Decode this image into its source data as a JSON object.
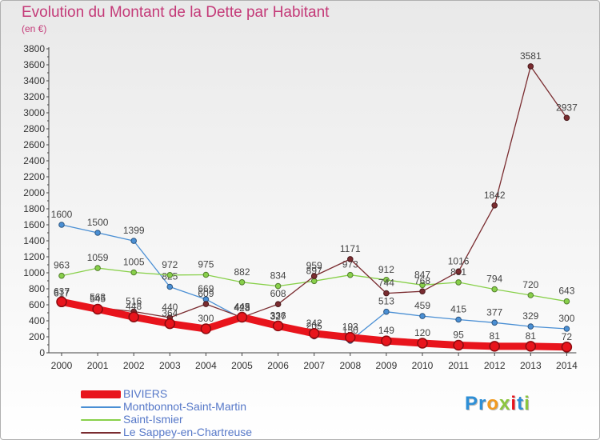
{
  "page": {
    "title": "Evolution du Montant de la Dette par Habitant",
    "subtitle": "(en €)"
  },
  "chart_data": {
    "type": "line",
    "title": "Evolution du Montant de la Dette par Habitant",
    "subtitle": "(en €)",
    "ylim": [
      0,
      3800
    ],
    "y_ticks": [
      0,
      200,
      400,
      600,
      800,
      1000,
      1200,
      1400,
      1600,
      1800,
      2000,
      2200,
      2400,
      2600,
      2800,
      3000,
      3200,
      3400,
      3600,
      3800
    ],
    "x": [
      "2000",
      "2001",
      "2002",
      "2003",
      "2004",
      "2005",
      "2006",
      "2007",
      "2008",
      "2009",
      "2010",
      "2011",
      "2012",
      "2013",
      "2014"
    ],
    "grid": false,
    "legend_position": "bottom-left",
    "series": [
      {
        "name": "BIVIERS",
        "color": "#e8141c",
        "values": [
          637,
          545,
          448,
          364,
          300,
          445,
          336,
          242,
          193,
          149,
          120,
          95,
          81,
          81,
          72
        ],
        "labels": [
          "637",
          "545",
          "448",
          "364",
          "300",
          "445",
          "336",
          "242",
          "193",
          "149",
          "120",
          "95",
          "81",
          "81",
          "72"
        ]
      },
      {
        "name": "Montbonnot-Saint-Martin",
        "color": "#4a8fd4",
        "values": [
          1600,
          1500,
          1399,
          825,
          669,
          428,
          327,
          205,
          150,
          513,
          459,
          415,
          377,
          329,
          300
        ],
        "labels": [
          "1600",
          "1500",
          "1399",
          "825",
          "669",
          "428",
          "327",
          "205",
          "150",
          "513",
          "459",
          "415",
          "377",
          "329",
          "300"
        ]
      },
      {
        "name": "Saint-Ismier",
        "color": "#88d04a",
        "values": [
          963,
          1059,
          1005,
          972,
          975,
          882,
          834,
          897,
          973,
          912,
          847,
          881,
          794,
          720,
          643
        ],
        "labels": [
          "963",
          "1059",
          "1005",
          "972",
          "975",
          "882",
          "834",
          "897",
          "973",
          "912",
          "847",
          "881",
          "794",
          "720",
          "643"
        ]
      },
      {
        "name": "Le Sappey-en-Chartreuse",
        "color": "#7a2c30",
        "values": [
          617,
          563,
          516,
          440,
          609,
          443,
          608,
          959,
          1171,
          744,
          768,
          1016,
          1842,
          3581,
          2937
        ],
        "labels": [
          "617",
          "563",
          "516",
          "440",
          "609",
          "443",
          "608",
          "959",
          "1171",
          "744",
          "768",
          "1016",
          "1842",
          "3581",
          "2937"
        ]
      }
    ]
  },
  "logo": {
    "letters": [
      {
        "ch": "P",
        "color": "#2e8fd6"
      },
      {
        "ch": "r",
        "color": "#2e8fd6"
      },
      {
        "ch": "o",
        "color": "#f29a1f"
      },
      {
        "ch": "x",
        "color": "#8cc63f"
      },
      {
        "ch": "i",
        "color": "#e8141c"
      },
      {
        "ch": "t",
        "color": "#2e8fd6"
      },
      {
        "ch": "i",
        "color": "#8cc63f"
      }
    ]
  }
}
